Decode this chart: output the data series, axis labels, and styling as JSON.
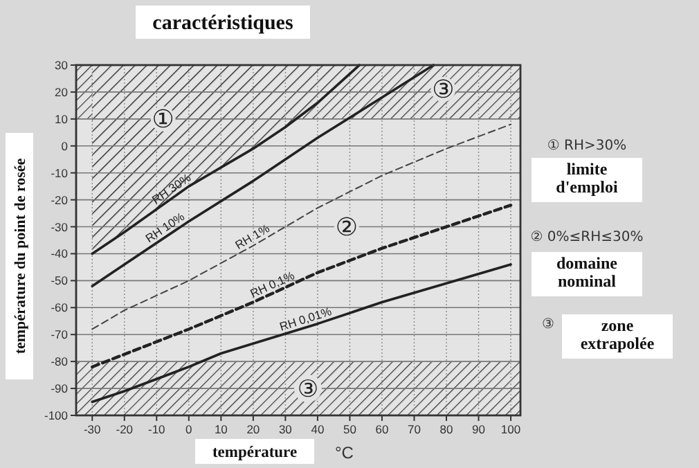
{
  "chart_data": {
    "type": "line",
    "title": "caractéristiques",
    "xlabel": "température",
    "ylabel": "température du point de rosée",
    "xlim": [
      -35,
      103
    ],
    "ylim": [
      -100,
      30
    ],
    "xticks": [
      -30,
      -20,
      -10,
      0,
      10,
      20,
      30,
      40,
      50,
      60,
      70,
      80,
      90,
      100
    ],
    "yticks": [
      -100,
      -90,
      -80,
      -70,
      -60,
      -50,
      -40,
      -30,
      -20,
      -10,
      0,
      10,
      20,
      30
    ],
    "grid": true,
    "marker": "none",
    "series": [
      {
        "name": "RH 30%",
        "color": "#222222",
        "line_style": "solid",
        "x": [
          -30,
          -20,
          0,
          20,
          30,
          40,
          53
        ],
        "values": [
          -40,
          -32,
          -15,
          -1,
          7,
          16,
          30
        ]
      },
      {
        "name": "RH 10%",
        "color": "#222222",
        "line_style": "solid",
        "x": [
          -30,
          -20,
          0,
          20,
          40,
          60,
          76
        ],
        "values": [
          -52,
          -44,
          -28,
          -13,
          3,
          18,
          30
        ]
      },
      {
        "name": "RH 1%",
        "color": "#444444",
        "line_style": "dashed",
        "x": [
          -30,
          -20,
          0,
          20,
          40,
          60,
          80,
          100
        ],
        "values": [
          -68,
          -61,
          -50,
          -37,
          -23,
          -11,
          -1,
          8
        ]
      },
      {
        "name": "RH 0,1%",
        "color": "#222222",
        "line_style": "dashed",
        "x": [
          -30,
          0,
          20,
          40,
          60,
          80,
          100
        ],
        "values": [
          -82,
          -68,
          -58,
          -47,
          -38,
          -30,
          -22
        ]
      },
      {
        "name": "RH 0,01%",
        "color": "#222222",
        "line_style": "solid",
        "x": [
          -30,
          -20,
          0,
          10,
          40,
          60,
          80,
          100
        ],
        "values": [
          -95,
          -91,
          -82,
          -77,
          -66,
          -58,
          -51,
          -44
        ]
      }
    ],
    "bands": [
      {
        "axis": "y",
        "from": 10,
        "to": 30,
        "color": "#333333"
      },
      {
        "axis": "y",
        "from": -100,
        "to": -80,
        "label": "③",
        "color": "#333333"
      }
    ],
    "annotations": [
      {
        "text": "①",
        "x": -8,
        "y": 10
      },
      {
        "text": "②",
        "x": 49,
        "y": -30
      },
      {
        "text": "③",
        "x": 79,
        "y": 21
      },
      "°C",
      "① RH>30%",
      "limite d'emploi",
      "② 0%≤RH≤30%",
      "domaine nominal",
      "③",
      "zone extrapolée"
    ]
  }
}
